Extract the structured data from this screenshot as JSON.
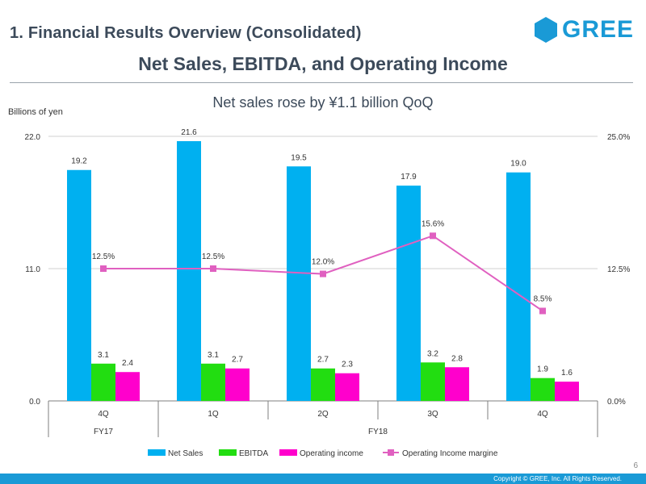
{
  "header": {
    "title": "1. Financial Results Overview (Consolidated)",
    "logo_text": "GREE",
    "brand_color": "#1a9ad6"
  },
  "slide_title": "Net Sales, EBITDA, and Operating Income",
  "subtitle": "Net sales rose by ¥1.1 billion QoQ",
  "footer": {
    "page_number": "6",
    "copyright": "Copyright © GREE, Inc. All Rights Reserved."
  },
  "chart_data": {
    "type": "bar",
    "ylabel": "Billions of yen",
    "categories": [
      "4Q",
      "1Q",
      "2Q",
      "3Q",
      "4Q"
    ],
    "groups": [
      {
        "label": "FY17",
        "categories": [
          "4Q"
        ]
      },
      {
        "label": "FY18",
        "categories": [
          "1Q",
          "2Q",
          "3Q",
          "4Q"
        ]
      }
    ],
    "ylim": [
      0,
      22
    ],
    "yticks": [
      "0.0",
      "11.0",
      "22.0"
    ],
    "y2lim": [
      0,
      25
    ],
    "y2ticks": [
      "0.0%",
      "12.5%",
      "25.0%"
    ],
    "series": [
      {
        "name": "Net Sales",
        "type": "bar",
        "color": "#00b0f0",
        "values": [
          19.2,
          21.6,
          19.5,
          17.9,
          19.0
        ],
        "labels": [
          "19.2",
          "21.6",
          "19.5",
          "17.9",
          "19.0"
        ]
      },
      {
        "name": "EBITDA",
        "type": "bar",
        "color": "#22dd11",
        "values": [
          3.1,
          3.1,
          2.7,
          3.2,
          1.9
        ],
        "labels": [
          "3.1",
          "3.1",
          "2.7",
          "3.2",
          "1.9"
        ]
      },
      {
        "name": "Operating income",
        "type": "bar",
        "color": "#ff00cc",
        "values": [
          2.4,
          2.7,
          2.3,
          2.8,
          1.6
        ],
        "labels": [
          "2.4",
          "2.7",
          "2.3",
          "2.8",
          "1.6"
        ]
      },
      {
        "name": "Operating Income margine",
        "type": "line",
        "axis": "right",
        "color": "#e060c0",
        "values": [
          12.5,
          12.5,
          12.0,
          15.6,
          8.5
        ],
        "labels": [
          "12.5%",
          "12.5%",
          "12.0%",
          "15.6%",
          "8.5%"
        ]
      }
    ],
    "legend": "bottom"
  }
}
